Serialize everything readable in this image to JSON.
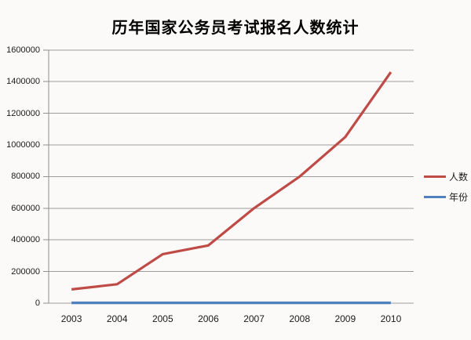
{
  "figure": {
    "background": "#fbfaf8"
  },
  "chart_data": {
    "type": "line",
    "title": "历年国家公务员考试报名人数统计",
    "categories": [
      "2003",
      "2004",
      "2005",
      "2006",
      "2007",
      "2008",
      "2009",
      "2010"
    ],
    "series": [
      {
        "name": "人数",
        "color": "#bf4b47",
        "values": [
          87000,
          120000,
          310000,
          365000,
          600000,
          800000,
          1050000,
          1460000
        ]
      },
      {
        "name": "年份",
        "color": "#4f81bd",
        "values": [
          2003,
          2004,
          2005,
          2006,
          2007,
          2008,
          2009,
          2010
        ]
      }
    ],
    "xlabel": "",
    "ylabel": "",
    "ylim": [
      0,
      1600000
    ],
    "ytick_step": 200000,
    "ytick_labels": [
      "0",
      "200000",
      "400000",
      "600000",
      "800000",
      "1000000",
      "1200000",
      "1400000",
      "1600000"
    ],
    "grid": "horizontal-only",
    "legend_position": "right-middle",
    "gridline_color": "#9c9c9c",
    "axis_color": "#8f8f8f",
    "text_color": "#1a1a1a"
  }
}
